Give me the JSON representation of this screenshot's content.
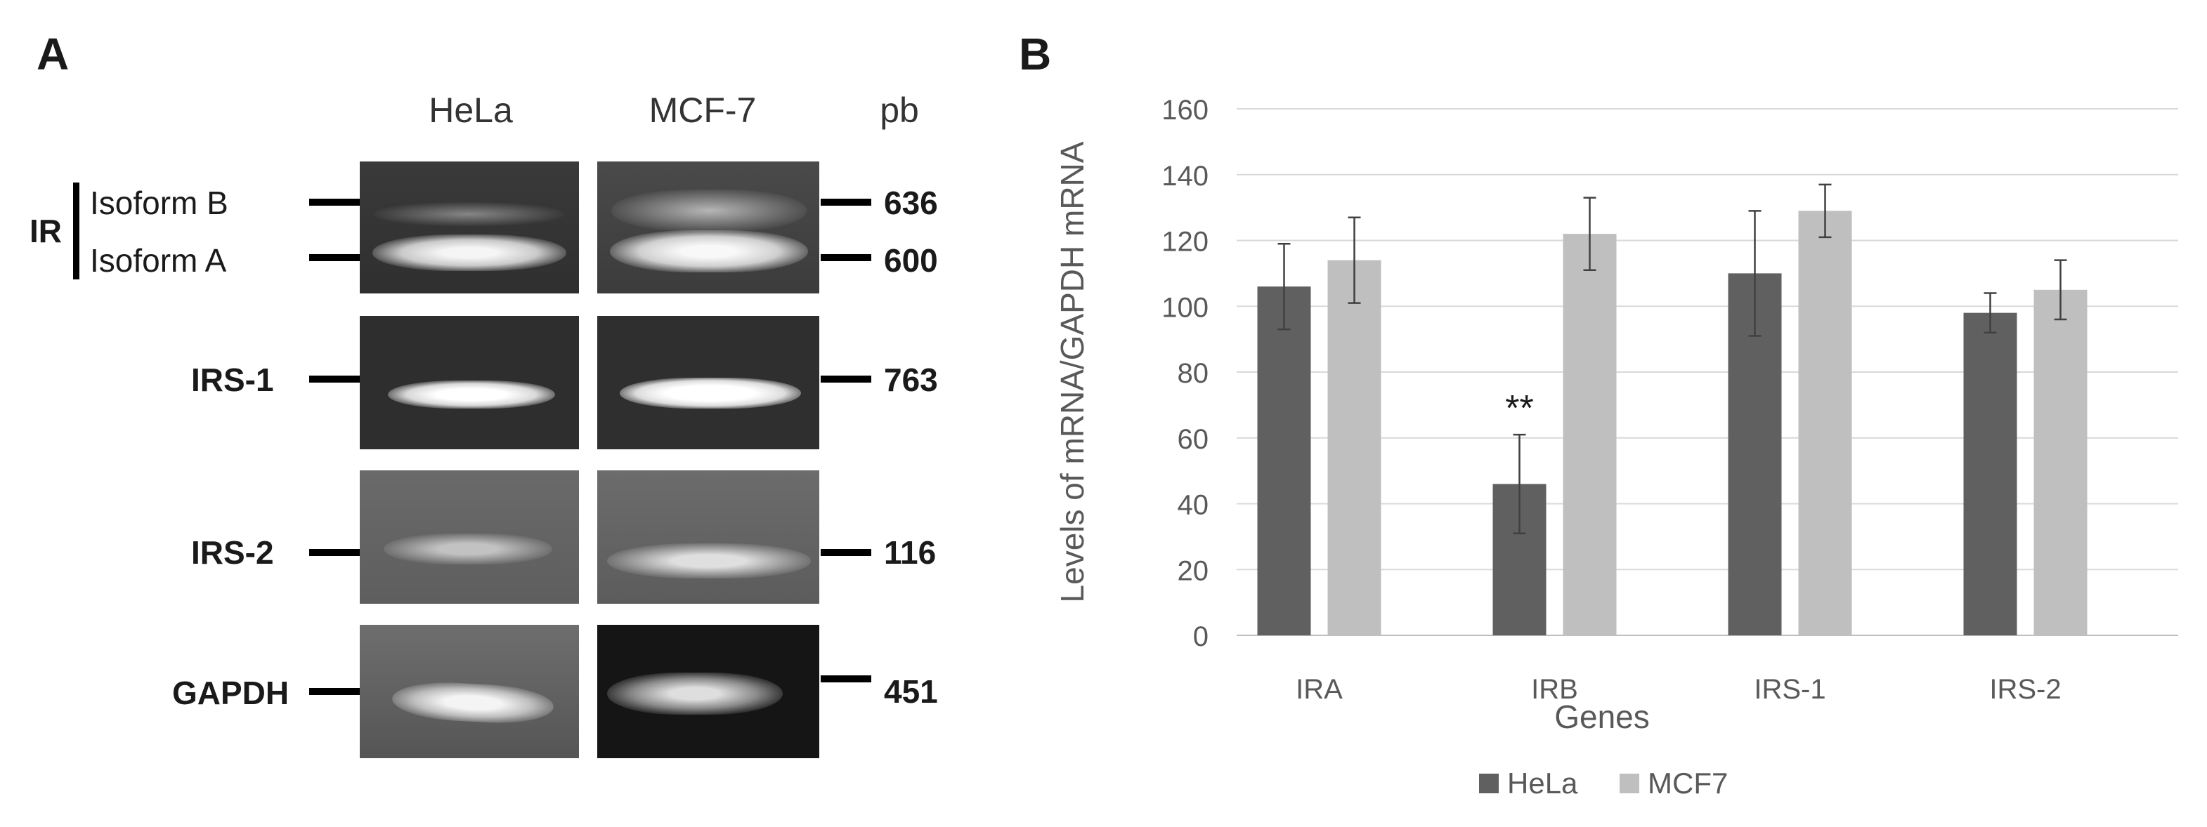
{
  "panel_a": {
    "letter": "A",
    "col_headers": [
      "HeLa",
      "MCF-7"
    ],
    "bp_header": "pb",
    "group_label": "IR",
    "isoform_labels": [
      "Isoform B",
      "Isoform A"
    ],
    "row_labels": [
      "IRS-1",
      "IRS-2",
      "GAPDH"
    ],
    "bp_values": [
      "636",
      "600",
      "763",
      "116",
      "451"
    ]
  },
  "panel_b": {
    "letter": "B"
  },
  "chart_data": {
    "type": "bar",
    "categories": [
      "IRA",
      "IRB",
      "IRS-1",
      "IRS-2"
    ],
    "series": [
      {
        "name": "HeLa",
        "values": [
          106,
          46,
          110,
          98
        ],
        "errors": [
          13,
          15,
          19,
          6
        ],
        "color": "#606060"
      },
      {
        "name": "MCF7",
        "values": [
          114,
          122,
          129,
          105
        ],
        "errors": [
          13,
          11,
          8,
          9
        ],
        "color": "#bfbfbf"
      }
    ],
    "annotations": [
      {
        "category": "IRB",
        "series": "HeLa",
        "text": "**"
      }
    ],
    "xlabel": "Genes",
    "ylabel": "Levels of mRNA/GAPDH mRNA",
    "ylim": [
      0,
      160
    ],
    "yticks": [
      0,
      20,
      40,
      60,
      80,
      100,
      120,
      140,
      160
    ],
    "grid": true,
    "legend": "bottom"
  }
}
